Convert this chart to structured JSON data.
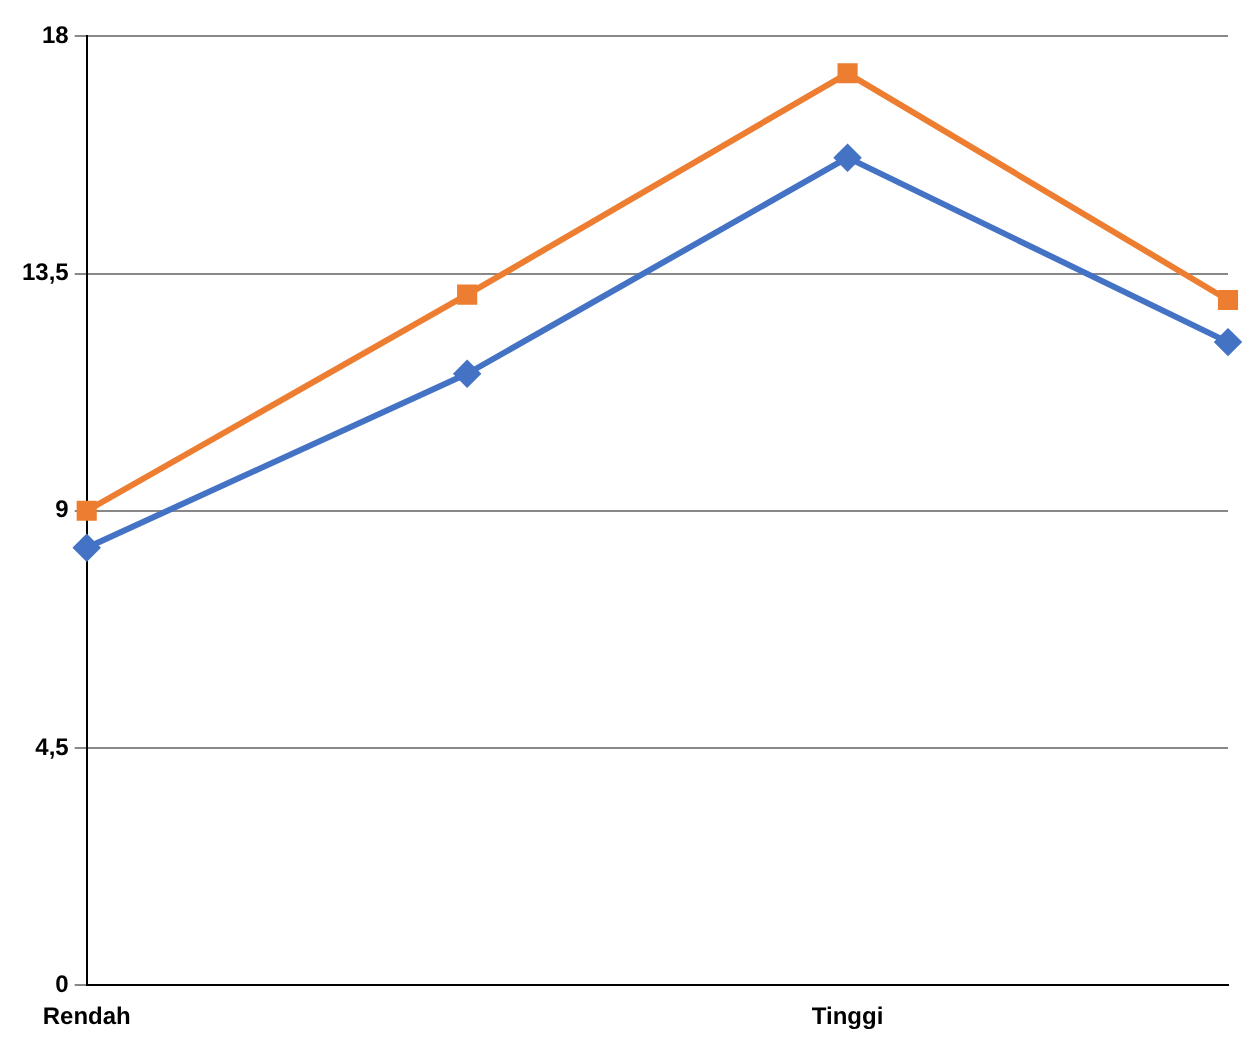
{
  "chart_data": {
    "type": "line",
    "categories": [
      "Rendah",
      null,
      "Tinggi",
      null
    ],
    "series": [
      {
        "color": "#4472c4",
        "marker": "diamond",
        "values": [
          8.3,
          11.6,
          15.7,
          12.2
        ]
      },
      {
        "color": "#ed7d31",
        "marker": "square",
        "values": [
          9,
          13.1,
          17.3,
          13
        ]
      }
    ],
    "ylim": [
      0,
      18
    ],
    "yticks": [
      0,
      {
        "value": 4.5,
        "label": "4,5"
      },
      9,
      {
        "value": 13.5,
        "label": "13,5"
      },
      18
    ],
    "grid": "y",
    "legend": false
  }
}
